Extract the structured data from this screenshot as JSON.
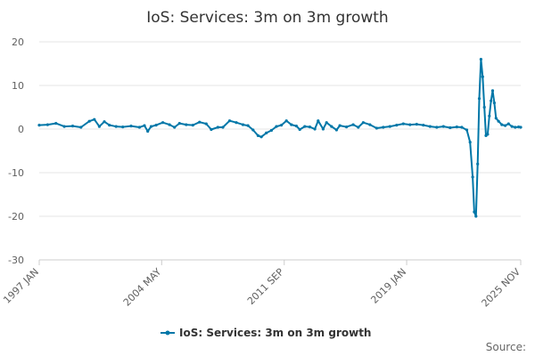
{
  "chart_data": {
    "type": "line",
    "title": "IoS: Services: 3m on 3m growth",
    "xlabel": "",
    "ylabel": "",
    "ylim": [
      -30,
      20
    ],
    "yticks": [
      "20",
      "10",
      "0",
      "-10",
      "-20",
      "-30"
    ],
    "xlim": [
      1997.0,
      2025.83
    ],
    "xticks": [
      {
        "label": "1997 JAN",
        "x": 1997.0
      },
      {
        "label": "2004 MAY",
        "x": 2004.33
      },
      {
        "label": "2011 SEP",
        "x": 2011.67
      },
      {
        "label": "2019 JAN",
        "x": 2019.0
      },
      {
        "label": "2025 NOV",
        "x": 2025.83
      }
    ],
    "grid": "horizontal",
    "legend_position": "bottom-center",
    "series": [
      {
        "name": "IoS: Services: 3m on 3m growth",
        "color": "#0077a8",
        "points": [
          [
            1997.0,
            0.9
          ],
          [
            1997.5,
            1.0
          ],
          [
            1998.0,
            1.3
          ],
          [
            1998.5,
            0.6
          ],
          [
            1999.0,
            0.7
          ],
          [
            1999.5,
            0.4
          ],
          [
            2000.0,
            1.8
          ],
          [
            2000.3,
            2.2
          ],
          [
            2000.6,
            0.6
          ],
          [
            2000.9,
            1.7
          ],
          [
            2001.2,
            0.9
          ],
          [
            2001.6,
            0.6
          ],
          [
            2002.0,
            0.5
          ],
          [
            2002.5,
            0.7
          ],
          [
            2003.0,
            0.4
          ],
          [
            2003.3,
            0.8
          ],
          [
            2003.5,
            -0.5
          ],
          [
            2003.7,
            0.6
          ],
          [
            2004.0,
            0.9
          ],
          [
            2004.4,
            1.5
          ],
          [
            2004.8,
            1.0
          ],
          [
            2005.1,
            0.4
          ],
          [
            2005.4,
            1.3
          ],
          [
            2005.8,
            1.0
          ],
          [
            2006.2,
            0.9
          ],
          [
            2006.6,
            1.6
          ],
          [
            2007.0,
            1.2
          ],
          [
            2007.3,
            -0.1
          ],
          [
            2007.7,
            0.4
          ],
          [
            2008.0,
            0.4
          ],
          [
            2008.4,
            1.9
          ],
          [
            2008.8,
            1.5
          ],
          [
            2009.2,
            1.0
          ],
          [
            2009.5,
            0.8
          ],
          [
            2009.8,
            -0.2
          ],
          [
            2010.1,
            -1.5
          ],
          [
            2010.3,
            -1.8
          ],
          [
            2010.6,
            -0.9
          ],
          [
            2010.9,
            -0.3
          ],
          [
            2011.2,
            0.6
          ],
          [
            2011.5,
            0.9
          ],
          [
            2011.8,
            1.9
          ],
          [
            2012.1,
            1.0
          ],
          [
            2012.4,
            0.7
          ],
          [
            2012.6,
            -0.1
          ],
          [
            2012.9,
            0.6
          ],
          [
            2013.2,
            0.5
          ],
          [
            2013.5,
            0.0
          ],
          [
            2013.7,
            1.9
          ],
          [
            2014.0,
            0.0
          ],
          [
            2014.2,
            1.5
          ],
          [
            2014.5,
            0.6
          ],
          [
            2014.8,
            -0.2
          ],
          [
            2015.0,
            0.8
          ],
          [
            2015.4,
            0.5
          ],
          [
            2015.8,
            1.0
          ],
          [
            2016.1,
            0.4
          ],
          [
            2016.4,
            1.5
          ],
          [
            2016.8,
            1.0
          ],
          [
            2017.2,
            0.2
          ],
          [
            2017.6,
            0.4
          ],
          [
            2018.0,
            0.6
          ],
          [
            2018.4,
            0.9
          ],
          [
            2018.8,
            1.2
          ],
          [
            2019.2,
            1.0
          ],
          [
            2019.6,
            1.1
          ],
          [
            2020.0,
            0.9
          ],
          [
            2020.4,
            0.6
          ],
          [
            2020.8,
            0.4
          ],
          [
            2021.2,
            0.6
          ],
          [
            2021.6,
            0.3
          ],
          [
            2022.0,
            0.5
          ],
          [
            2022.3,
            0.4
          ],
          [
            2022.6,
            -0.2
          ],
          [
            2022.8,
            -3.0
          ],
          [
            2022.95,
            -11.0
          ],
          [
            2023.05,
            -19.0
          ],
          [
            2023.15,
            -20.0
          ],
          [
            2023.25,
            -8.0
          ],
          [
            2023.35,
            7.0
          ],
          [
            2023.45,
            16.0
          ],
          [
            2023.55,
            12.0
          ],
          [
            2023.65,
            5.0
          ],
          [
            2023.75,
            -1.5
          ],
          [
            2023.85,
            -1.2
          ],
          [
            2023.95,
            3.0
          ],
          [
            2024.05,
            6.5
          ],
          [
            2024.15,
            8.8
          ],
          [
            2024.25,
            6.0
          ],
          [
            2024.35,
            2.5
          ],
          [
            2024.5,
            1.8
          ],
          [
            2024.7,
            1.0
          ],
          [
            2024.9,
            0.8
          ],
          [
            2025.1,
            1.2
          ],
          [
            2025.3,
            0.6
          ],
          [
            2025.5,
            0.4
          ],
          [
            2025.7,
            0.5
          ],
          [
            2025.83,
            0.4
          ]
        ]
      }
    ]
  },
  "source_label": "Source:"
}
